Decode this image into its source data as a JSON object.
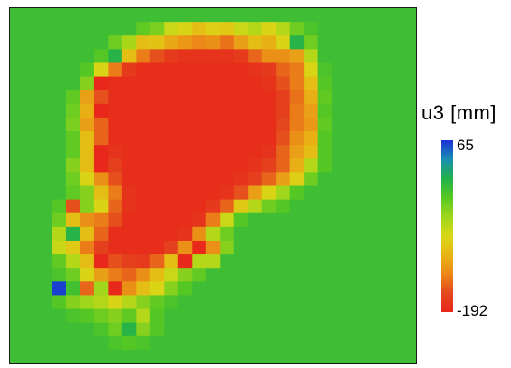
{
  "chart_data": {
    "type": "heatmap",
    "title": "",
    "xlabel": "",
    "ylabel": "",
    "colorbar": {
      "label": "u3 [mm]",
      "max": 65,
      "min": -192,
      "max_label": "65",
      "min_label": "-192",
      "colors": [
        "#1a2fd6",
        "#1a8fb0",
        "#22b14c",
        "#56c823",
        "#9ed61b",
        "#d8d816",
        "#e8b614",
        "#ec8818",
        "#e4481e",
        "#e8261a"
      ]
    },
    "grid": {
      "cols": 29,
      "rows": 26
    },
    "background_value": -8,
    "values": [
      [
        -8,
        -8,
        -8,
        -8,
        -8,
        -8,
        -8,
        -8,
        -8,
        -8,
        -8,
        -8,
        -8,
        -8,
        -8,
        -8,
        -8,
        -8,
        -8,
        -8,
        -8,
        -8,
        -8,
        -8,
        -8,
        -8,
        -8,
        -8,
        -8
      ],
      [
        -8,
        -8,
        -8,
        -8,
        -8,
        -8,
        -8,
        -8,
        -8,
        -25,
        -35,
        -70,
        -80,
        -100,
        -85,
        -90,
        -70,
        -60,
        -80,
        -60,
        -30,
        -15,
        -8,
        -8,
        -8,
        -8,
        -8,
        -8,
        -8
      ],
      [
        -8,
        -8,
        -8,
        -8,
        -8,
        -8,
        -8,
        -30,
        -55,
        -100,
        -95,
        -115,
        -125,
        -135,
        -130,
        -145,
        -120,
        -100,
        -110,
        -80,
        5,
        -30,
        -8,
        -8,
        -8,
        -8,
        -8,
        -8,
        -8
      ],
      [
        -8,
        -8,
        -8,
        -8,
        -8,
        -8,
        -20,
        5,
        -100,
        -140,
        -160,
        -175,
        -180,
        -180,
        -180,
        -180,
        -175,
        -150,
        -130,
        -130,
        -120,
        -60,
        -8,
        -8,
        -8,
        -8,
        -8,
        -8,
        -8
      ],
      [
        -8,
        -8,
        -8,
        -8,
        -8,
        -20,
        -80,
        -140,
        -175,
        -185,
        -185,
        -185,
        -185,
        -185,
        -185,
        -185,
        -185,
        -180,
        -175,
        -150,
        -140,
        -80,
        -15,
        -8,
        -8,
        -8,
        -8,
        -8,
        -8
      ],
      [
        -8,
        -8,
        -8,
        -8,
        -8,
        -40,
        -190,
        -185,
        -185,
        -185,
        -185,
        -185,
        -185,
        -185,
        -185,
        -185,
        -185,
        -185,
        -180,
        -160,
        -140,
        -100,
        -20,
        -8,
        -8,
        -8,
        -8,
        -8,
        -8
      ],
      [
        -8,
        -8,
        -8,
        -8,
        -25,
        -120,
        -160,
        -185,
        -185,
        -185,
        -185,
        -185,
        -185,
        -185,
        -185,
        -185,
        -185,
        -185,
        -185,
        -170,
        -145,
        -110,
        -25,
        -8,
        -8,
        -8,
        -8,
        -8,
        -8
      ],
      [
        -8,
        -8,
        -8,
        -8,
        -30,
        -110,
        -190,
        -185,
        -185,
        -185,
        -185,
        -185,
        -185,
        -185,
        -185,
        -185,
        -185,
        -185,
        -185,
        -170,
        -140,
        -120,
        -20,
        -8,
        -8,
        -8,
        -8,
        -8,
        -8
      ],
      [
        -8,
        -8,
        -8,
        -8,
        -35,
        -120,
        -150,
        -185,
        -185,
        -185,
        -185,
        -185,
        -185,
        -185,
        -185,
        -185,
        -185,
        -185,
        -185,
        -165,
        -140,
        -125,
        -25,
        -8,
        -8,
        -8,
        -8,
        -8,
        -8
      ],
      [
        -8,
        -8,
        -8,
        -8,
        -25,
        -100,
        -150,
        -185,
        -185,
        -185,
        -185,
        -185,
        -185,
        -185,
        -185,
        -185,
        -185,
        -185,
        -185,
        -160,
        -130,
        -110,
        -20,
        -8,
        -8,
        -8,
        -8,
        -8,
        -8
      ],
      [
        -8,
        -8,
        -8,
        -8,
        -25,
        -100,
        -190,
        -180,
        -185,
        -185,
        -185,
        -185,
        -185,
        -185,
        -185,
        -185,
        -185,
        -185,
        -180,
        -150,
        -120,
        -100,
        -20,
        -8,
        -8,
        -8,
        -8,
        -8,
        -8
      ],
      [
        -8,
        -8,
        -8,
        -8,
        -40,
        -100,
        -190,
        -170,
        -185,
        -185,
        -185,
        -185,
        -185,
        -185,
        -185,
        -185,
        -185,
        -180,
        -170,
        -150,
        -110,
        -60,
        -20,
        -8,
        -8,
        -8,
        -8,
        -8,
        -8
      ],
      [
        -8,
        -8,
        -8,
        -8,
        -30,
        -80,
        -130,
        -160,
        -185,
        -185,
        -185,
        -185,
        -185,
        -185,
        -185,
        -185,
        -180,
        -170,
        -150,
        -120,
        -85,
        -30,
        -8,
        -8,
        -8,
        -8,
        -8,
        -8,
        -8
      ],
      [
        -8,
        -8,
        -8,
        -8,
        -25,
        -40,
        -100,
        -140,
        -180,
        -185,
        -185,
        -185,
        -185,
        -185,
        -185,
        -180,
        -160,
        -120,
        -80,
        -50,
        -20,
        -8,
        -8,
        -8,
        -8,
        -8,
        -8,
        -8,
        -8
      ],
      [
        -8,
        -8,
        -8,
        -20,
        -160,
        -40,
        -80,
        -150,
        -180,
        -185,
        -185,
        -185,
        -185,
        -185,
        -175,
        -150,
        -90,
        -60,
        -30,
        -20,
        -8,
        -8,
        -8,
        -8,
        -8,
        -8,
        -8,
        -8,
        -8
      ],
      [
        -8,
        -8,
        -8,
        -30,
        -100,
        -130,
        -140,
        -160,
        -185,
        -185,
        -185,
        -185,
        -185,
        -180,
        -140,
        -70,
        -20,
        -8,
        -8,
        -8,
        -8,
        -8,
        -8,
        -8,
        -8,
        -8,
        -8,
        -8,
        -8
      ],
      [
        -8,
        -8,
        -8,
        -60,
        5,
        -100,
        -150,
        -185,
        -185,
        -185,
        -185,
        -185,
        -180,
        -130,
        -60,
        -30,
        -8,
        -8,
        -8,
        -8,
        -8,
        -8,
        -8,
        -8,
        -8,
        -8,
        -8,
        -8,
        -8
      ],
      [
        -8,
        -8,
        -8,
        -70,
        -90,
        -140,
        -170,
        -185,
        -185,
        -185,
        -185,
        -170,
        -130,
        -190,
        -130,
        -40,
        -8,
        -8,
        -8,
        -8,
        -8,
        -8,
        -8,
        -8,
        -8,
        -8,
        -8,
        -8,
        -8
      ],
      [
        -8,
        -8,
        -8,
        -25,
        -60,
        -100,
        -190,
        -160,
        -170,
        -175,
        -150,
        -100,
        -190,
        -60,
        -60,
        -8,
        -8,
        -8,
        -8,
        -8,
        -8,
        -8,
        -8,
        -8,
        -8,
        -8,
        -8,
        -8,
        -8
      ],
      [
        -8,
        -8,
        -8,
        -15,
        -30,
        -80,
        -120,
        -140,
        -150,
        -130,
        -100,
        -70,
        -40,
        -25,
        -8,
        -8,
        -8,
        -8,
        -8,
        -8,
        -8,
        -8,
        -8,
        -8,
        -8,
        -8,
        -8,
        -8,
        -8
      ],
      [
        -8,
        -8,
        -8,
        60,
        -10,
        -150,
        -50,
        -190,
        -130,
        -100,
        -80,
        -40,
        -20,
        -8,
        -8,
        -8,
        -8,
        -8,
        -8,
        -8,
        -8,
        -8,
        -8,
        -8,
        -8,
        -8,
        -8,
        -8,
        -8
      ],
      [
        -8,
        -8,
        -8,
        -20,
        -40,
        -50,
        -60,
        -80,
        -60,
        -40,
        -25,
        -15,
        -8,
        -8,
        -8,
        -8,
        -8,
        -8,
        -8,
        -8,
        -8,
        -8,
        -8,
        -8,
        -8,
        -8,
        -8,
        -8,
        -8
      ],
      [
        -8,
        -8,
        -8,
        -8,
        -15,
        -20,
        -30,
        -40,
        -25,
        -60,
        -20,
        -8,
        -8,
        -8,
        -8,
        -8,
        -8,
        -8,
        -8,
        -8,
        -8,
        -8,
        -8,
        -8,
        -8,
        -8,
        -8,
        -8,
        -8
      ],
      [
        -8,
        -8,
        -8,
        -8,
        -8,
        -8,
        -15,
        -30,
        5,
        -40,
        -20,
        -8,
        -8,
        -8,
        -8,
        -8,
        -8,
        -8,
        -8,
        -8,
        -8,
        -8,
        -8,
        -8,
        -8,
        -8,
        -8,
        -8,
        -8
      ],
      [
        -8,
        -8,
        -8,
        -8,
        -8,
        -8,
        -8,
        -15,
        -20,
        -15,
        -8,
        -8,
        -8,
        -8,
        -8,
        -8,
        -8,
        -8,
        -8,
        -8,
        -8,
        -8,
        -8,
        -8,
        -8,
        -8,
        -8,
        -8,
        -8
      ],
      [
        -8,
        -8,
        -8,
        -8,
        -8,
        -8,
        -8,
        -8,
        -8,
        -8,
        -8,
        -8,
        -8,
        -8,
        -8,
        -8,
        -8,
        -8,
        -8,
        -8,
        -8,
        -8,
        -8,
        -8,
        -8,
        -8,
        -8,
        -8,
        -8
      ]
    ]
  }
}
